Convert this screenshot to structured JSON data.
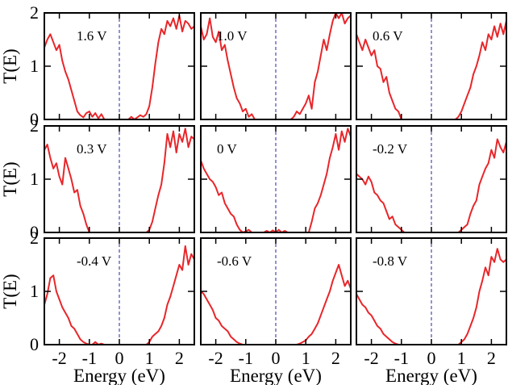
{
  "chart_data": {
    "type": "line",
    "layout": "3x3 grid of panels with shared axes",
    "xlabel": "Energy (eV)",
    "ylabel": "T(E)",
    "xlim": [
      -2.5,
      2.5
    ],
    "ylim": [
      0,
      2
    ],
    "xticks": [
      -2,
      -1,
      0,
      1,
      2
    ],
    "xtick_labels": [
      "-2",
      "-1",
      "0",
      "1",
      "2"
    ],
    "yticks": [
      0,
      1,
      2
    ],
    "ytick_labels": [
      "0",
      "1",
      "2"
    ],
    "grid": false,
    "line_color": "#e8262a",
    "reference_line": {
      "x": 0,
      "style": "dashed",
      "color": "#3a3aa8"
    },
    "panels": [
      {
        "label": "1.6 V",
        "x": [
          -2.5,
          -2.4,
          -2.3,
          -2.2,
          -2.1,
          -2.0,
          -1.9,
          -1.8,
          -1.7,
          -1.6,
          -1.5,
          -1.4,
          -1.3,
          -1.2,
          -1.1,
          -1.0,
          -0.9,
          -0.8,
          -0.7,
          -0.6,
          -0.5,
          -0.4,
          -0.3,
          -0.2,
          -0.1,
          0.0,
          0.1,
          0.2,
          0.3,
          0.4,
          0.5,
          0.6,
          0.7,
          0.8,
          0.9,
          1.0,
          1.1,
          1.2,
          1.3,
          1.4,
          1.5,
          1.6,
          1.7,
          1.8,
          1.9,
          2.0,
          2.1,
          2.2,
          2.3,
          2.4,
          2.5
        ],
        "y": [
          1.35,
          1.5,
          1.6,
          1.45,
          1.3,
          1.4,
          1.1,
          0.9,
          0.75,
          0.55,
          0.35,
          0.15,
          0.08,
          0.04,
          0.12,
          0.15,
          0.05,
          0.12,
          0.02,
          0.1,
          0.0,
          0.0,
          0.0,
          0.0,
          0.0,
          0.0,
          0.0,
          0.0,
          0.0,
          0.05,
          0.0,
          0.04,
          0.08,
          0.05,
          0.1,
          0.25,
          0.6,
          1.05,
          1.45,
          1.7,
          1.6,
          1.85,
          1.75,
          1.9,
          1.7,
          1.95,
          1.65,
          1.85,
          1.8,
          1.7,
          1.75
        ]
      },
      {
        "label": "1.0 V",
        "x": [
          -2.5,
          -2.4,
          -2.3,
          -2.2,
          -2.1,
          -2.0,
          -1.9,
          -1.8,
          -1.7,
          -1.6,
          -1.5,
          -1.4,
          -1.3,
          -1.2,
          -1.1,
          -1.0,
          -0.9,
          -0.8,
          -0.7,
          -0.6,
          -0.5,
          -0.4,
          -0.3,
          -0.2,
          -0.1,
          0.0,
          0.1,
          0.2,
          0.3,
          0.4,
          0.5,
          0.6,
          0.7,
          0.8,
          0.9,
          1.0,
          1.1,
          1.2,
          1.3,
          1.4,
          1.5,
          1.6,
          1.7,
          1.8,
          1.9,
          2.0,
          2.1,
          2.2,
          2.3,
          2.4,
          2.5
        ],
        "y": [
          1.75,
          1.5,
          1.6,
          1.9,
          1.55,
          1.45,
          1.65,
          1.3,
          1.4,
          1.1,
          0.85,
          0.6,
          0.4,
          0.3,
          0.15,
          0.2,
          0.05,
          0.1,
          0.0,
          0.0,
          0.0,
          0.0,
          0.0,
          0.0,
          0.0,
          0.0,
          0.0,
          0.0,
          0.0,
          0.0,
          0.0,
          0.05,
          0.15,
          0.1,
          0.2,
          0.3,
          0.45,
          0.2,
          0.7,
          0.9,
          1.2,
          1.5,
          1.3,
          1.6,
          1.85,
          2.0,
          1.9,
          2.0,
          1.8,
          1.9,
          1.95
        ]
      },
      {
        "label": "0.6 V",
        "x": [
          -2.5,
          -2.4,
          -2.3,
          -2.2,
          -2.1,
          -2.0,
          -1.9,
          -1.8,
          -1.7,
          -1.6,
          -1.5,
          -1.4,
          -1.3,
          -1.2,
          -1.1,
          -1.0,
          -0.9,
          -0.8,
          -0.7,
          -0.6,
          -0.5,
          -0.4,
          -0.3,
          -0.2,
          -0.1,
          0.0,
          0.1,
          0.2,
          0.3,
          0.4,
          0.5,
          0.6,
          0.7,
          0.8,
          0.9,
          1.0,
          1.1,
          1.2,
          1.3,
          1.4,
          1.5,
          1.6,
          1.7,
          1.8,
          1.9,
          2.0,
          2.1,
          2.2,
          2.3,
          2.4,
          2.5
        ],
        "y": [
          1.6,
          1.45,
          1.3,
          1.5,
          1.35,
          1.2,
          1.3,
          1.0,
          0.95,
          0.7,
          0.8,
          0.5,
          0.35,
          0.2,
          0.15,
          0.0,
          0.0,
          0.0,
          0.0,
          0.0,
          0.0,
          0.0,
          0.0,
          0.0,
          0.0,
          0.0,
          0.0,
          0.0,
          0.0,
          0.0,
          0.0,
          0.0,
          0.0,
          0.0,
          0.05,
          0.15,
          0.3,
          0.45,
          0.6,
          0.85,
          1.0,
          1.2,
          1.45,
          1.3,
          1.6,
          1.5,
          1.75,
          1.55,
          1.8,
          1.6,
          1.85
        ]
      },
      {
        "label": "0.3 V",
        "x": [
          -2.5,
          -2.4,
          -2.3,
          -2.2,
          -2.1,
          -2.0,
          -1.9,
          -1.8,
          -1.7,
          -1.6,
          -1.5,
          -1.4,
          -1.3,
          -1.2,
          -1.1,
          -1.0,
          -0.9,
          -0.8,
          -0.7,
          -0.6,
          -0.5,
          -0.4,
          -0.3,
          -0.2,
          -0.1,
          0.0,
          0.1,
          0.2,
          0.3,
          0.4,
          0.5,
          0.6,
          0.7,
          0.8,
          0.9,
          1.0,
          1.1,
          1.2,
          1.3,
          1.4,
          1.5,
          1.6,
          1.7,
          1.8,
          1.9,
          2.0,
          2.1,
          2.2,
          2.3,
          2.4,
          2.5
        ],
        "y": [
          1.55,
          1.65,
          1.4,
          1.2,
          1.3,
          1.05,
          0.9,
          1.4,
          1.2,
          1.0,
          0.75,
          0.8,
          0.5,
          0.35,
          0.15,
          0.0,
          0.0,
          0.0,
          0.0,
          0.0,
          0.0,
          0.0,
          0.0,
          0.0,
          0.0,
          0.0,
          0.0,
          0.0,
          0.0,
          0.0,
          0.0,
          0.0,
          0.0,
          0.0,
          0.0,
          0.05,
          0.2,
          0.45,
          0.7,
          0.9,
          1.3,
          1.85,
          1.6,
          1.9,
          1.5,
          1.85,
          1.7,
          1.95,
          1.6,
          1.8,
          1.75
        ]
      },
      {
        "label": "0 V",
        "x": [
          -2.5,
          -2.4,
          -2.3,
          -2.2,
          -2.1,
          -2.0,
          -1.9,
          -1.8,
          -1.7,
          -1.6,
          -1.5,
          -1.4,
          -1.3,
          -1.2,
          -1.1,
          -1.0,
          -0.9,
          -0.8,
          -0.7,
          -0.6,
          -0.5,
          -0.4,
          -0.3,
          -0.2,
          -0.1,
          0.0,
          0.1,
          0.2,
          0.3,
          0.4,
          0.5,
          0.6,
          0.7,
          0.8,
          0.9,
          1.0,
          1.1,
          1.2,
          1.3,
          1.4,
          1.5,
          1.6,
          1.7,
          1.8,
          1.9,
          2.0,
          2.1,
          2.2,
          2.3,
          2.4,
          2.5
        ],
        "y": [
          1.35,
          1.2,
          1.1,
          1.0,
          0.95,
          0.85,
          0.7,
          0.75,
          0.55,
          0.45,
          0.35,
          0.3,
          0.15,
          0.05,
          0.0,
          0.02,
          0.05,
          0.0,
          0.0,
          0.0,
          0.0,
          0.0,
          0.03,
          0.0,
          0.04,
          0.0,
          0.05,
          0.0,
          0.03,
          0.0,
          0.0,
          0.0,
          0.0,
          0.0,
          0.0,
          0.0,
          0.0,
          0.2,
          0.45,
          0.55,
          0.7,
          0.9,
          1.1,
          1.4,
          1.6,
          1.85,
          1.55,
          1.9,
          1.7,
          1.95,
          1.8
        ]
      },
      {
        "label": "-0.2 V",
        "x": [
          -2.5,
          -2.4,
          -2.3,
          -2.2,
          -2.1,
          -2.0,
          -1.9,
          -1.8,
          -1.7,
          -1.6,
          -1.5,
          -1.4,
          -1.3,
          -1.2,
          -1.1,
          -1.0,
          -0.9,
          -0.8,
          -0.7,
          -0.6,
          -0.5,
          -0.4,
          -0.3,
          -0.2,
          -0.1,
          0.0,
          0.1,
          0.2,
          0.3,
          0.4,
          0.5,
          0.6,
          0.7,
          0.8,
          0.9,
          1.0,
          1.1,
          1.2,
          1.3,
          1.4,
          1.5,
          1.6,
          1.7,
          1.8,
          1.9,
          2.0,
          2.1,
          2.2,
          2.3,
          2.4,
          2.5
        ],
        "y": [
          1.1,
          1.05,
          1.0,
          0.9,
          1.05,
          0.95,
          0.75,
          0.7,
          0.6,
          0.55,
          0.4,
          0.25,
          0.3,
          0.15,
          0.1,
          0.05,
          0.0,
          0.0,
          0.0,
          0.0,
          0.0,
          0.0,
          0.0,
          0.0,
          0.0,
          0.0,
          0.0,
          0.0,
          0.0,
          0.0,
          0.0,
          0.0,
          0.0,
          0.0,
          0.0,
          0.05,
          0.1,
          0.15,
          0.35,
          0.5,
          0.6,
          0.9,
          1.05,
          1.2,
          1.3,
          1.55,
          1.4,
          1.75,
          1.6,
          1.5,
          1.7
        ]
      },
      {
        "label": "-0.4 V",
        "x": [
          -2.5,
          -2.4,
          -2.3,
          -2.2,
          -2.1,
          -2.0,
          -1.9,
          -1.8,
          -1.7,
          -1.6,
          -1.5,
          -1.4,
          -1.3,
          -1.2,
          -1.1,
          -1.0,
          -0.9,
          -0.8,
          -0.7,
          -0.6,
          -0.5,
          -0.4,
          -0.3,
          -0.2,
          -0.1,
          0.0,
          0.1,
          0.2,
          0.3,
          0.4,
          0.5,
          0.6,
          0.7,
          0.8,
          0.9,
          1.0,
          1.1,
          1.2,
          1.3,
          1.4,
          1.5,
          1.6,
          1.7,
          1.8,
          1.9,
          2.0,
          2.1,
          2.2,
          2.3,
          2.4,
          2.5
        ],
        "y": [
          0.75,
          0.95,
          1.25,
          1.3,
          1.0,
          0.85,
          0.7,
          0.6,
          0.5,
          0.35,
          0.3,
          0.2,
          0.1,
          0.05,
          0.02,
          0.0,
          0.0,
          0.05,
          0.0,
          0.02,
          0.0,
          0.0,
          0.0,
          0.0,
          0.0,
          0.0,
          0.0,
          0.0,
          0.0,
          0.0,
          0.0,
          0.0,
          0.0,
          0.0,
          0.0,
          0.05,
          0.15,
          0.2,
          0.25,
          0.35,
          0.5,
          0.75,
          0.9,
          1.1,
          1.3,
          1.5,
          1.4,
          1.85,
          1.5,
          1.7,
          1.6
        ]
      },
      {
        "label": "-0.6 V",
        "x": [
          -2.5,
          -2.4,
          -2.3,
          -2.2,
          -2.1,
          -2.0,
          -1.9,
          -1.8,
          -1.7,
          -1.6,
          -1.5,
          -1.4,
          -1.3,
          -1.2,
          -1.1,
          -1.0,
          -0.9,
          -0.8,
          -0.7,
          -0.6,
          -0.5,
          -0.4,
          -0.3,
          -0.2,
          -0.1,
          0.0,
          0.1,
          0.2,
          0.3,
          0.4,
          0.5,
          0.6,
          0.7,
          0.8,
          0.9,
          1.0,
          1.1,
          1.2,
          1.3,
          1.4,
          1.5,
          1.6,
          1.7,
          1.8,
          1.9,
          2.0,
          2.1,
          2.2,
          2.3,
          2.4,
          2.5
        ],
        "y": [
          1.0,
          0.95,
          0.85,
          0.75,
          0.65,
          0.5,
          0.45,
          0.35,
          0.3,
          0.25,
          0.15,
          0.1,
          0.05,
          0.02,
          0.0,
          0.0,
          0.0,
          0.0,
          0.0,
          0.0,
          0.0,
          0.0,
          0.0,
          0.0,
          0.0,
          0.0,
          0.0,
          0.0,
          0.0,
          0.0,
          0.0,
          0.0,
          0.0,
          0.02,
          0.05,
          0.08,
          0.15,
          0.2,
          0.3,
          0.4,
          0.55,
          0.7,
          0.85,
          1.0,
          1.2,
          1.35,
          1.5,
          1.3,
          1.1,
          1.2,
          1.05
        ]
      },
      {
        "label": "-0.8 V",
        "x": [
          -2.5,
          -2.4,
          -2.3,
          -2.2,
          -2.1,
          -2.0,
          -1.9,
          -1.8,
          -1.7,
          -1.6,
          -1.5,
          -1.4,
          -1.3,
          -1.2,
          -1.1,
          -1.0,
          -0.9,
          -0.8,
          -0.7,
          -0.6,
          -0.5,
          -0.4,
          -0.3,
          -0.2,
          -0.1,
          0.0,
          0.1,
          0.2,
          0.3,
          0.4,
          0.5,
          0.6,
          0.7,
          0.8,
          0.9,
          1.0,
          1.1,
          1.2,
          1.3,
          1.4,
          1.5,
          1.6,
          1.7,
          1.8,
          1.9,
          2.0,
          2.1,
          2.2,
          2.3,
          2.4,
          2.5
        ],
        "y": [
          0.95,
          0.85,
          0.75,
          0.7,
          0.6,
          0.55,
          0.45,
          0.35,
          0.3,
          0.2,
          0.15,
          0.1,
          0.05,
          0.02,
          0.0,
          0.0,
          0.0,
          0.0,
          0.0,
          0.0,
          0.0,
          0.0,
          0.0,
          0.0,
          0.0,
          0.0,
          0.0,
          0.0,
          0.0,
          0.0,
          0.0,
          0.0,
          0.0,
          0.0,
          0.0,
          0.05,
          0.1,
          0.2,
          0.35,
          0.5,
          0.7,
          1.0,
          1.2,
          1.45,
          1.3,
          1.65,
          1.55,
          1.8,
          1.6,
          1.55,
          1.6
        ]
      }
    ]
  }
}
